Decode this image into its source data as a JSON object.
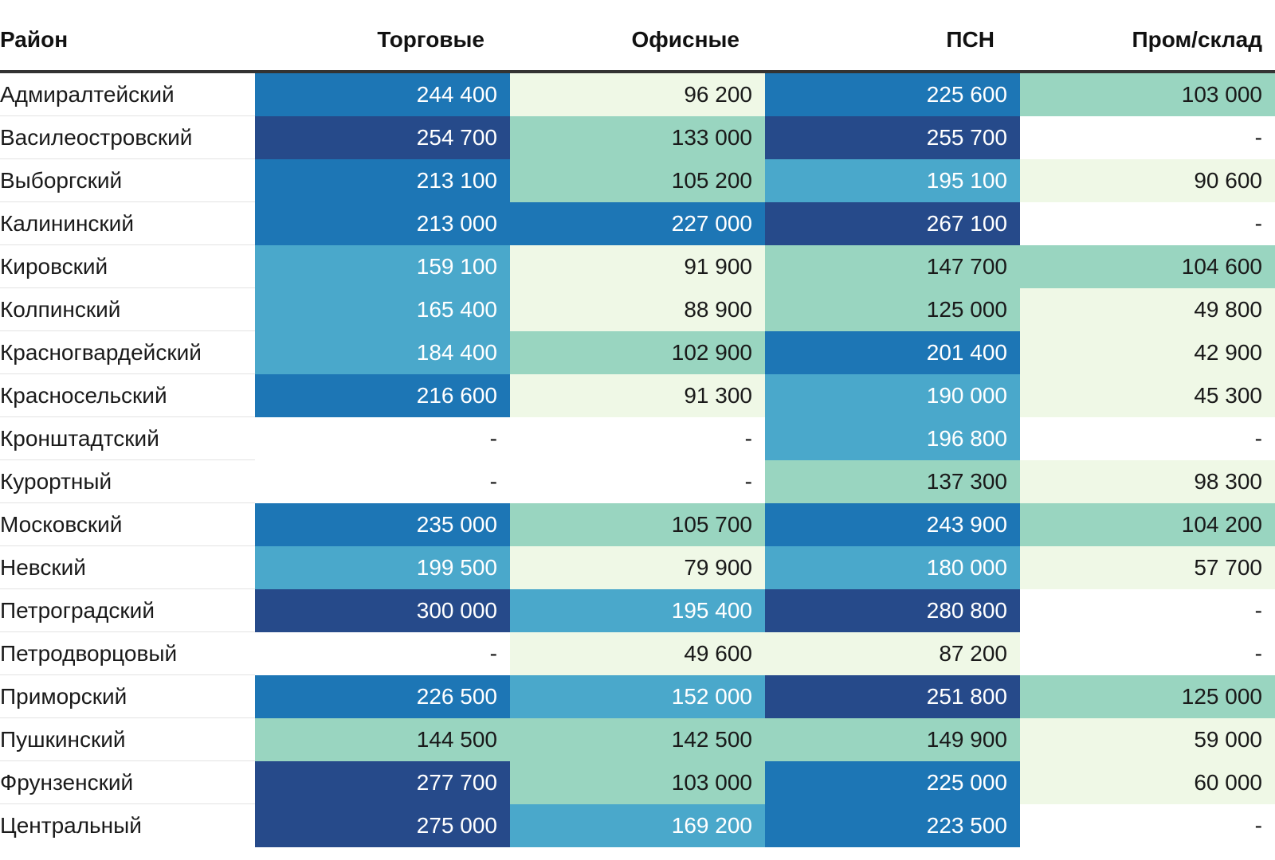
{
  "chart_data": {
    "type": "table",
    "columns": [
      "Район",
      "Торговые",
      "Офисные",
      "ПСН",
      "Пром/склад"
    ],
    "rows": [
      {
        "district": "Адмиралтейский",
        "values": [
          "244 400",
          "96 200",
          "225 600",
          "103 000"
        ],
        "numeric": [
          244400,
          96200,
          225600,
          103000
        ]
      },
      {
        "district": "Василеостровский",
        "values": [
          "254 700",
          "133 000",
          "255 700",
          "-"
        ],
        "numeric": [
          254700,
          133000,
          255700,
          null
        ]
      },
      {
        "district": "Выборгский",
        "values": [
          "213 100",
          "105 200",
          "195 100",
          "90 600"
        ],
        "numeric": [
          213100,
          105200,
          195100,
          90600
        ]
      },
      {
        "district": "Калининский",
        "values": [
          "213 000",
          "227 000",
          "267 100",
          "-"
        ],
        "numeric": [
          213000,
          227000,
          267100,
          null
        ]
      },
      {
        "district": "Кировский",
        "values": [
          "159 100",
          "91 900",
          "147 700",
          "104 600"
        ],
        "numeric": [
          159100,
          91900,
          147700,
          104600
        ]
      },
      {
        "district": "Колпинский",
        "values": [
          "165 400",
          "88 900",
          "125 000",
          "49 800"
        ],
        "numeric": [
          165400,
          88900,
          125000,
          49800
        ]
      },
      {
        "district": "Красногвардейский",
        "values": [
          "184 400",
          "102 900",
          "201 400",
          "42 900"
        ],
        "numeric": [
          184400,
          102900,
          201400,
          42900
        ]
      },
      {
        "district": "Красносельский",
        "values": [
          "216 600",
          "91 300",
          "190 000",
          "45 300"
        ],
        "numeric": [
          216600,
          91300,
          190000,
          45300
        ]
      },
      {
        "district": "Кронштадтский",
        "values": [
          "-",
          "-",
          "196 800",
          "-"
        ],
        "numeric": [
          null,
          null,
          196800,
          null
        ]
      },
      {
        "district": "Курортный",
        "values": [
          "-",
          "-",
          "137 300",
          "98 300"
        ],
        "numeric": [
          null,
          null,
          137300,
          98300
        ]
      },
      {
        "district": "Московский",
        "values": [
          "235 000",
          "105 700",
          "243 900",
          "104 200"
        ],
        "numeric": [
          235000,
          105700,
          243900,
          104200
        ]
      },
      {
        "district": "Невский",
        "values": [
          "199 500",
          "79 900",
          "180 000",
          "57 700"
        ],
        "numeric": [
          199500,
          79900,
          180000,
          57700
        ]
      },
      {
        "district": "Петроградский",
        "values": [
          "300 000",
          "195 400",
          "280 800",
          "-"
        ],
        "numeric": [
          300000,
          195400,
          280800,
          null
        ]
      },
      {
        "district": "Петродворцовый",
        "values": [
          "-",
          "49 600",
          "87 200",
          "-"
        ],
        "numeric": [
          null,
          49600,
          87200,
          null
        ]
      },
      {
        "district": "Приморский",
        "values": [
          "226 500",
          "152 000",
          "251 800",
          "125 000"
        ],
        "numeric": [
          226500,
          152000,
          251800,
          125000
        ]
      },
      {
        "district": "Пушкинский",
        "values": [
          "144 500",
          "142 500",
          "149 900",
          "59 000"
        ],
        "numeric": [
          144500,
          142500,
          149900,
          59000
        ]
      },
      {
        "district": "Фрунзенский",
        "values": [
          "277 700",
          "103 000",
          "225 000",
          "60 000"
        ],
        "numeric": [
          277700,
          103000,
          225000,
          60000
        ]
      },
      {
        "district": "Центральный",
        "values": [
          "275 000",
          "169 200",
          "223 500",
          "-"
        ],
        "numeric": [
          275000,
          169200,
          223500,
          null
        ]
      }
    ],
    "color_scale": {
      "bins": [
        {
          "min": 0,
          "max": 100000,
          "color": "#eff8e6",
          "text": "#1a1a1a"
        },
        {
          "min": 100000,
          "max": 150000,
          "color": "#99d5c0",
          "text": "#1a1a1a"
        },
        {
          "min": 150000,
          "max": 200000,
          "color": "#4aa8cb",
          "text": "#ffffff"
        },
        {
          "min": 200000,
          "max": 250000,
          "color": "#1d76b5",
          "text": "#ffffff"
        },
        {
          "min": 250000,
          "max": 1000000,
          "color": "#264a8a",
          "text": "#ffffff"
        }
      ],
      "empty_color": "#ffffff"
    }
  }
}
